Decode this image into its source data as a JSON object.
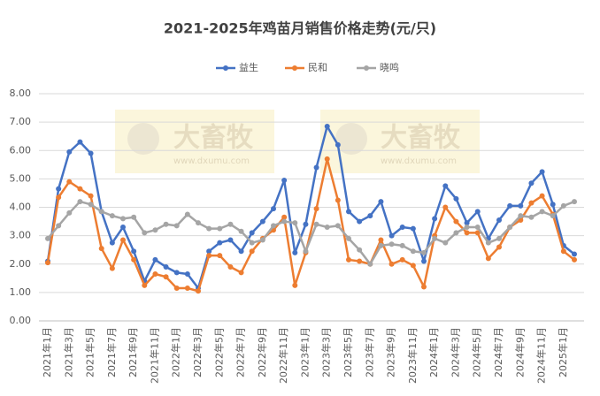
{
  "chart_data": {
    "type": "line",
    "title": "2021-2025年鸡苗月销售价格走势(元/只)",
    "watermark": {
      "text": "大畜牧",
      "url": "www.dxumu.com"
    },
    "categories": [
      "2021年1月",
      null,
      "2021年3月",
      null,
      "2021年5月",
      null,
      "2021年7月",
      null,
      "2021年9月",
      null,
      "2021年11月",
      null,
      "2022年1月",
      null,
      "2022年3月",
      null,
      "2022年5月",
      null,
      "2022年7月",
      null,
      "2022年9月",
      null,
      "2022年11月",
      null,
      "2023年1月",
      null,
      "2023年3月",
      null,
      "2023年5月",
      null,
      "2023年7月",
      null,
      "2023年9月",
      null,
      "2023年11月",
      null,
      "2024年1月",
      null,
      "2024年3月",
      null,
      "2024年5月",
      null,
      "2024年7月",
      null,
      "2024年9月",
      null,
      "2024年11月",
      null,
      "2025年1月",
      null
    ],
    "series": [
      {
        "name": "益生",
        "color": "#4472c4",
        "values": [
          2.1,
          4.65,
          5.95,
          6.3,
          5.9,
          3.85,
          2.75,
          3.3,
          2.45,
          1.4,
          2.15,
          1.9,
          1.7,
          1.65,
          1.15,
          2.45,
          2.75,
          2.85,
          2.45,
          3.1,
          3.5,
          3.95,
          4.95,
          2.4,
          3.4,
          5.4,
          6.85,
          6.2,
          3.85,
          3.5,
          3.7,
          4.2,
          3.0,
          3.3,
          3.25,
          2.1,
          3.6,
          4.75,
          4.3,
          3.45,
          3.85,
          2.9,
          3.55,
          4.05,
          4.05,
          4.85,
          5.25,
          4.1,
          2.65,
          2.35
        ]
      },
      {
        "name": "民和",
        "color": "#ed7d31",
        "values": [
          2.05,
          4.35,
          4.9,
          4.65,
          4.4,
          2.55,
          1.85,
          2.85,
          2.15,
          1.25,
          1.65,
          1.55,
          1.15,
          1.15,
          1.05,
          2.3,
          2.3,
          1.9,
          1.7,
          2.45,
          2.9,
          3.2,
          3.65,
          1.25,
          2.4,
          3.95,
          5.7,
          4.25,
          2.15,
          2.1,
          2.0,
          2.85,
          2.0,
          2.15,
          1.95,
          1.2,
          3.0,
          4.0,
          3.5,
          3.1,
          3.1,
          2.2,
          2.6,
          3.3,
          3.55,
          4.15,
          4.4,
          3.75,
          2.45,
          2.15
        ]
      },
      {
        "name": "晓鸣",
        "color": "#a5a5a5",
        "values": [
          2.9,
          3.35,
          3.8,
          4.2,
          4.1,
          3.85,
          3.7,
          3.6,
          3.65,
          3.1,
          3.2,
          3.4,
          3.35,
          3.75,
          3.45,
          3.25,
          3.25,
          3.4,
          3.15,
          2.75,
          2.85,
          3.35,
          3.5,
          3.45,
          2.45,
          3.4,
          3.3,
          3.35,
          2.9,
          2.5,
          2.0,
          2.65,
          2.7,
          2.65,
          2.45,
          2.4,
          2.9,
          2.75,
          3.1,
          3.3,
          3.3,
          2.75,
          2.9,
          3.3,
          3.7,
          3.65,
          3.85,
          3.7,
          4.05,
          4.2
        ]
      }
    ],
    "ylim": [
      0,
      8
    ],
    "yticks": [
      {
        "value": 0,
        "label": "0.00"
      },
      {
        "value": 1,
        "label": "1.00"
      },
      {
        "value": 2,
        "label": "2.00"
      },
      {
        "value": 3,
        "label": "3.00"
      },
      {
        "value": 4,
        "label": "4.00"
      },
      {
        "value": 5,
        "label": "5.00"
      },
      {
        "value": 6,
        "label": "6.00"
      },
      {
        "value": 7,
        "label": "7.00"
      },
      {
        "value": 8,
        "label": "8.00"
      }
    ],
    "grid": true,
    "legend": "top"
  }
}
